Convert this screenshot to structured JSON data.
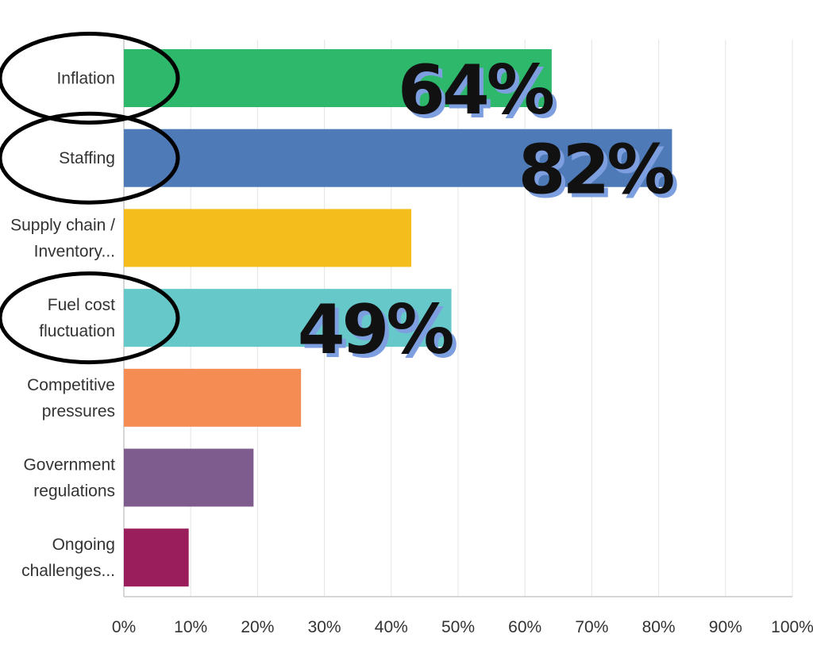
{
  "chart_data": {
    "type": "bar",
    "orientation": "horizontal",
    "title": "",
    "xlabel": "",
    "ylabel": "",
    "categories": [
      [
        "Inflation"
      ],
      [
        "Staffing"
      ],
      [
        "Supply chain /",
        "Inventory..."
      ],
      [
        "Fuel cost",
        "fluctuation"
      ],
      [
        "Competitive",
        "pressures"
      ],
      [
        "Government",
        "regulations"
      ],
      [
        "Ongoing",
        "challenges..."
      ]
    ],
    "values": [
      64,
      82,
      43,
      49,
      26.5,
      19.4,
      9.7
    ],
    "colors": [
      "#2db86b",
      "#4e7ab8",
      "#f5bd1c",
      "#67c8ca",
      "#f48c53",
      "#7e5d8e",
      "#9a1e5b"
    ],
    "xlim": [
      0,
      100
    ],
    "x_ticks": [
      "0%",
      "10%",
      "20%",
      "30%",
      "40%",
      "50%",
      "60%",
      "70%",
      "80%",
      "90%",
      "100%"
    ],
    "grid": true,
    "annotations": [
      {
        "text": "64%",
        "category_index": 0
      },
      {
        "text": "82%",
        "category_index": 1
      },
      {
        "text": "49%",
        "category_index": 3
      }
    ],
    "circled_categories": [
      0,
      1,
      3
    ]
  }
}
